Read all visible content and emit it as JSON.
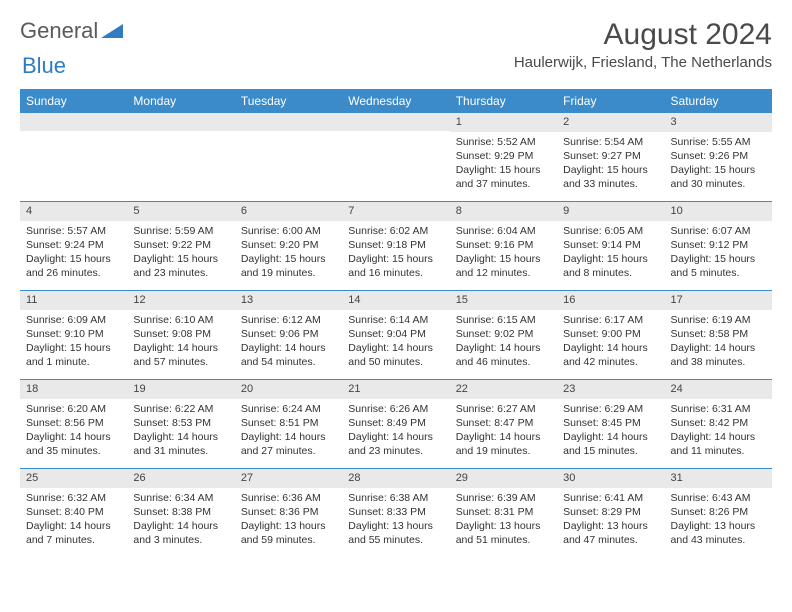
{
  "logo": {
    "part1": "General",
    "part2": "Blue"
  },
  "title": "August 2024",
  "location": "Haulerwijk, Friesland, The Netherlands",
  "colors": {
    "header_bg": "#3b8bca",
    "header_text": "#ffffff",
    "daynum_bg": "#e9e9e9",
    "rule": "#3b8bca",
    "text": "#333333",
    "title_text": "#4a4a4a",
    "logo_gray": "#5a5a5a",
    "logo_blue": "#2f7dc0"
  },
  "day_names": [
    "Sunday",
    "Monday",
    "Tuesday",
    "Wednesday",
    "Thursday",
    "Friday",
    "Saturday"
  ],
  "weeks": [
    [
      {
        "blank": true
      },
      {
        "blank": true
      },
      {
        "blank": true
      },
      {
        "blank": true
      },
      {
        "day": "1",
        "sunrise": "Sunrise: 5:52 AM",
        "sunset": "Sunset: 9:29 PM",
        "daylight": "Daylight: 15 hours and 37 minutes."
      },
      {
        "day": "2",
        "sunrise": "Sunrise: 5:54 AM",
        "sunset": "Sunset: 9:27 PM",
        "daylight": "Daylight: 15 hours and 33 minutes."
      },
      {
        "day": "3",
        "sunrise": "Sunrise: 5:55 AM",
        "sunset": "Sunset: 9:26 PM",
        "daylight": "Daylight: 15 hours and 30 minutes."
      }
    ],
    [
      {
        "day": "4",
        "sunrise": "Sunrise: 5:57 AM",
        "sunset": "Sunset: 9:24 PM",
        "daylight": "Daylight: 15 hours and 26 minutes."
      },
      {
        "day": "5",
        "sunrise": "Sunrise: 5:59 AM",
        "sunset": "Sunset: 9:22 PM",
        "daylight": "Daylight: 15 hours and 23 minutes."
      },
      {
        "day": "6",
        "sunrise": "Sunrise: 6:00 AM",
        "sunset": "Sunset: 9:20 PM",
        "daylight": "Daylight: 15 hours and 19 minutes."
      },
      {
        "day": "7",
        "sunrise": "Sunrise: 6:02 AM",
        "sunset": "Sunset: 9:18 PM",
        "daylight": "Daylight: 15 hours and 16 minutes."
      },
      {
        "day": "8",
        "sunrise": "Sunrise: 6:04 AM",
        "sunset": "Sunset: 9:16 PM",
        "daylight": "Daylight: 15 hours and 12 minutes."
      },
      {
        "day": "9",
        "sunrise": "Sunrise: 6:05 AM",
        "sunset": "Sunset: 9:14 PM",
        "daylight": "Daylight: 15 hours and 8 minutes."
      },
      {
        "day": "10",
        "sunrise": "Sunrise: 6:07 AM",
        "sunset": "Sunset: 9:12 PM",
        "daylight": "Daylight: 15 hours and 5 minutes."
      }
    ],
    [
      {
        "day": "11",
        "sunrise": "Sunrise: 6:09 AM",
        "sunset": "Sunset: 9:10 PM",
        "daylight": "Daylight: 15 hours and 1 minute."
      },
      {
        "day": "12",
        "sunrise": "Sunrise: 6:10 AM",
        "sunset": "Sunset: 9:08 PM",
        "daylight": "Daylight: 14 hours and 57 minutes."
      },
      {
        "day": "13",
        "sunrise": "Sunrise: 6:12 AM",
        "sunset": "Sunset: 9:06 PM",
        "daylight": "Daylight: 14 hours and 54 minutes."
      },
      {
        "day": "14",
        "sunrise": "Sunrise: 6:14 AM",
        "sunset": "Sunset: 9:04 PM",
        "daylight": "Daylight: 14 hours and 50 minutes."
      },
      {
        "day": "15",
        "sunrise": "Sunrise: 6:15 AM",
        "sunset": "Sunset: 9:02 PM",
        "daylight": "Daylight: 14 hours and 46 minutes."
      },
      {
        "day": "16",
        "sunrise": "Sunrise: 6:17 AM",
        "sunset": "Sunset: 9:00 PM",
        "daylight": "Daylight: 14 hours and 42 minutes."
      },
      {
        "day": "17",
        "sunrise": "Sunrise: 6:19 AM",
        "sunset": "Sunset: 8:58 PM",
        "daylight": "Daylight: 14 hours and 38 minutes."
      }
    ],
    [
      {
        "day": "18",
        "sunrise": "Sunrise: 6:20 AM",
        "sunset": "Sunset: 8:56 PM",
        "daylight": "Daylight: 14 hours and 35 minutes."
      },
      {
        "day": "19",
        "sunrise": "Sunrise: 6:22 AM",
        "sunset": "Sunset: 8:53 PM",
        "daylight": "Daylight: 14 hours and 31 minutes."
      },
      {
        "day": "20",
        "sunrise": "Sunrise: 6:24 AM",
        "sunset": "Sunset: 8:51 PM",
        "daylight": "Daylight: 14 hours and 27 minutes."
      },
      {
        "day": "21",
        "sunrise": "Sunrise: 6:26 AM",
        "sunset": "Sunset: 8:49 PM",
        "daylight": "Daylight: 14 hours and 23 minutes."
      },
      {
        "day": "22",
        "sunrise": "Sunrise: 6:27 AM",
        "sunset": "Sunset: 8:47 PM",
        "daylight": "Daylight: 14 hours and 19 minutes."
      },
      {
        "day": "23",
        "sunrise": "Sunrise: 6:29 AM",
        "sunset": "Sunset: 8:45 PM",
        "daylight": "Daylight: 14 hours and 15 minutes."
      },
      {
        "day": "24",
        "sunrise": "Sunrise: 6:31 AM",
        "sunset": "Sunset: 8:42 PM",
        "daylight": "Daylight: 14 hours and 11 minutes."
      }
    ],
    [
      {
        "day": "25",
        "sunrise": "Sunrise: 6:32 AM",
        "sunset": "Sunset: 8:40 PM",
        "daylight": "Daylight: 14 hours and 7 minutes."
      },
      {
        "day": "26",
        "sunrise": "Sunrise: 6:34 AM",
        "sunset": "Sunset: 8:38 PM",
        "daylight": "Daylight: 14 hours and 3 minutes."
      },
      {
        "day": "27",
        "sunrise": "Sunrise: 6:36 AM",
        "sunset": "Sunset: 8:36 PM",
        "daylight": "Daylight: 13 hours and 59 minutes."
      },
      {
        "day": "28",
        "sunrise": "Sunrise: 6:38 AM",
        "sunset": "Sunset: 8:33 PM",
        "daylight": "Daylight: 13 hours and 55 minutes."
      },
      {
        "day": "29",
        "sunrise": "Sunrise: 6:39 AM",
        "sunset": "Sunset: 8:31 PM",
        "daylight": "Daylight: 13 hours and 51 minutes."
      },
      {
        "day": "30",
        "sunrise": "Sunrise: 6:41 AM",
        "sunset": "Sunset: 8:29 PM",
        "daylight": "Daylight: 13 hours and 47 minutes."
      },
      {
        "day": "31",
        "sunrise": "Sunrise: 6:43 AM",
        "sunset": "Sunset: 8:26 PM",
        "daylight": "Daylight: 13 hours and 43 minutes."
      }
    ]
  ]
}
